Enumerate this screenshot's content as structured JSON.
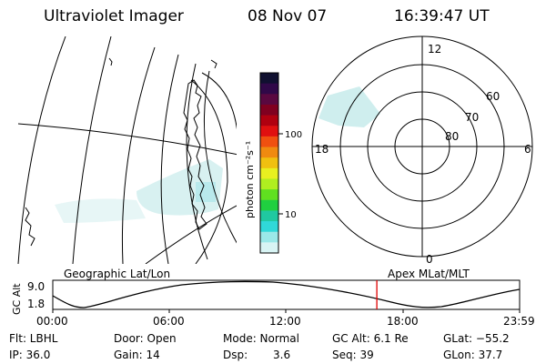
{
  "header": {
    "instrument": "Ultraviolet Imager",
    "date": "08 Nov 07",
    "time": "16:39:47 UT"
  },
  "geo_panel": {
    "label": "Geographic Lat/Lon"
  },
  "colorbar": {
    "unit_label": "photon cm⁻²s⁻¹",
    "ticks": [
      "100",
      "10"
    ],
    "colors": [
      "#101030",
      "#300848",
      "#5a0840",
      "#800020",
      "#b00010",
      "#e01010",
      "#f05010",
      "#f08a10",
      "#f0c010",
      "#e8f020",
      "#b0ee20",
      "#60e020",
      "#20d040",
      "#20c8a0",
      "#30d8d8",
      "#9ae8e8",
      "#d8f4f4"
    ]
  },
  "polar_panel": {
    "label": "Apex MLat/MLT",
    "lat_labels": [
      "60",
      "70",
      "80"
    ],
    "mlt_labels": {
      "top": "12",
      "left": "18",
      "right": "6",
      "bottom": "0"
    }
  },
  "orbit_plot": {
    "ylabel": "GC Alt",
    "y_ticks": [
      "9.0",
      "1.8"
    ],
    "x_ticks": [
      "00:00",
      "06:00",
      "12:00",
      "18:00",
      "23:59"
    ],
    "marker_time_hours": 16.66
  },
  "info": {
    "flt": "Flt: LBHL",
    "ip": "IP: 36.0",
    "door": "Door: Open",
    "gain": "Gain: 14",
    "mode": "Mode: Normal",
    "dsp_label": "Dsp:",
    "dsp_value": "3.6",
    "gcalt": "GC Alt: 6.1 Re",
    "seq": "Seq: 39",
    "glat": "GLat: −55.2",
    "glon": "GLon:  37.7"
  }
}
